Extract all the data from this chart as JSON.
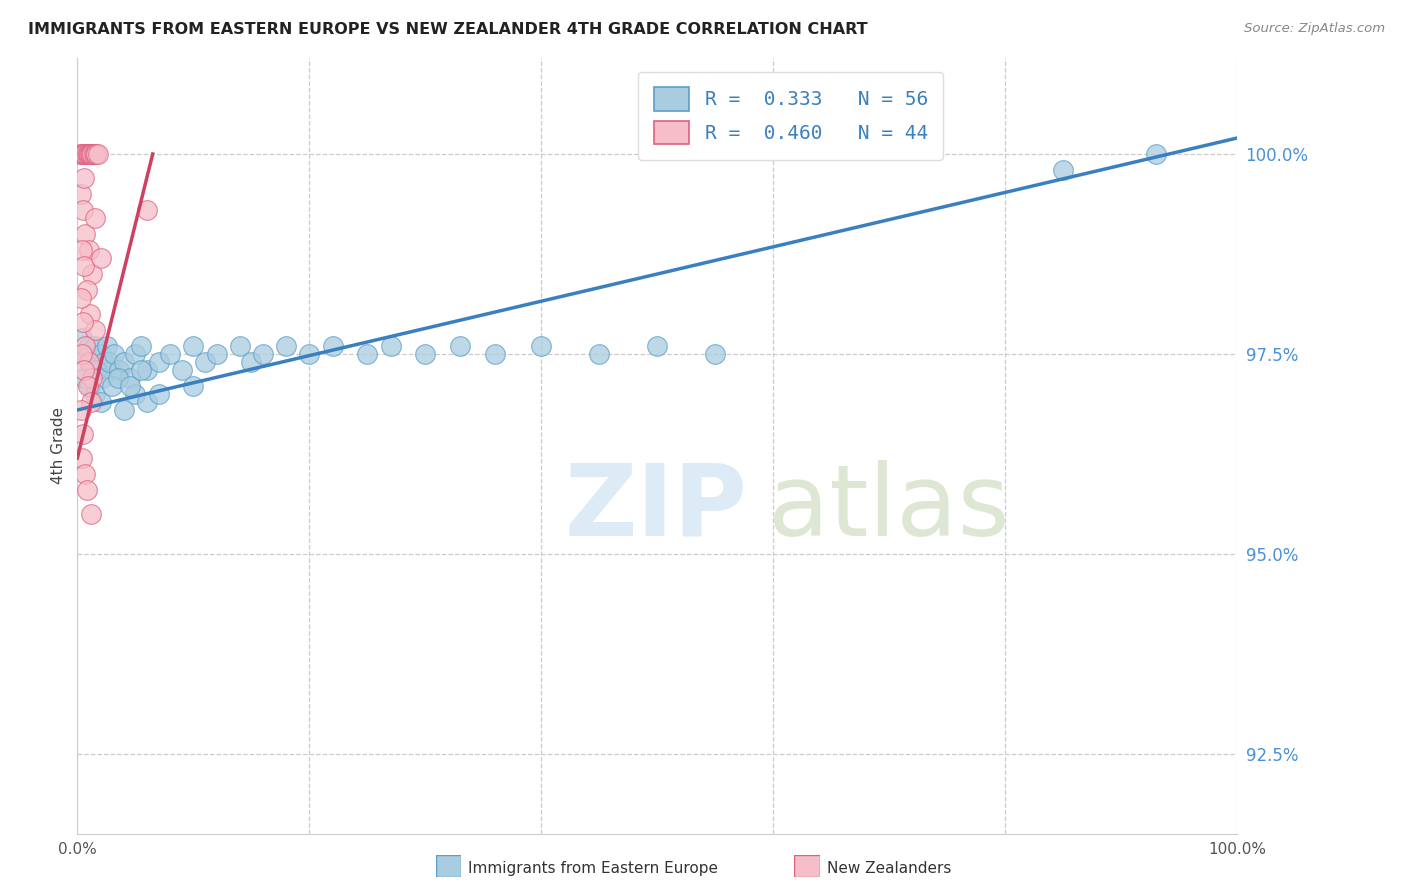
{
  "title": "IMMIGRANTS FROM EASTERN EUROPE VS NEW ZEALANDER 4TH GRADE CORRELATION CHART",
  "source": "Source: ZipAtlas.com",
  "ylabel": "4th Grade",
  "y_ticks": [
    92.5,
    95.0,
    97.5,
    100.0
  ],
  "y_tick_labels": [
    "92.5%",
    "95.0%",
    "97.5%",
    "100.0%"
  ],
  "xlim": [
    0.0,
    100.0
  ],
  "ylim": [
    91.5,
    101.2
  ],
  "legend_blue_text": "R =  0.333   N = 56",
  "legend_pink_text": "R =  0.460   N = 44",
  "blue_fill": "#a8cce0",
  "pink_fill": "#f5bec8",
  "blue_edge": "#5a9ec8",
  "pink_edge": "#e06080",
  "blue_line_color": "#3a80c0",
  "pink_line_color": "#d04060",
  "background_color": "#ffffff",
  "blue_scatter": [
    [
      0.4,
      97.7
    ],
    [
      0.7,
      97.5
    ],
    [
      1.0,
      97.6
    ],
    [
      1.3,
      97.4
    ],
    [
      1.5,
      97.6
    ],
    [
      1.8,
      97.3
    ],
    [
      2.0,
      97.5
    ],
    [
      2.3,
      97.4
    ],
    [
      2.6,
      97.6
    ],
    [
      2.9,
      97.3
    ],
    [
      0.6,
      97.2
    ],
    [
      1.1,
      97.1
    ],
    [
      1.6,
      97.3
    ],
    [
      2.1,
      97.2
    ],
    [
      2.7,
      97.4
    ],
    [
      3.2,
      97.5
    ],
    [
      3.6,
      97.3
    ],
    [
      4.0,
      97.4
    ],
    [
      4.5,
      97.2
    ],
    [
      5.0,
      97.5
    ],
    [
      5.5,
      97.6
    ],
    [
      6.0,
      97.3
    ],
    [
      7.0,
      97.4
    ],
    [
      8.0,
      97.5
    ],
    [
      9.0,
      97.3
    ],
    [
      10.0,
      97.6
    ],
    [
      11.0,
      97.4
    ],
    [
      12.0,
      97.5
    ],
    [
      14.0,
      97.6
    ],
    [
      15.0,
      97.4
    ],
    [
      16.0,
      97.5
    ],
    [
      18.0,
      97.6
    ],
    [
      20.0,
      97.5
    ],
    [
      22.0,
      97.6
    ],
    [
      25.0,
      97.5
    ],
    [
      27.0,
      97.6
    ],
    [
      30.0,
      97.5
    ],
    [
      33.0,
      97.6
    ],
    [
      36.0,
      97.5
    ],
    [
      40.0,
      97.6
    ],
    [
      45.0,
      97.5
    ],
    [
      50.0,
      97.6
    ],
    [
      55.0,
      97.5
    ],
    [
      85.0,
      99.8
    ],
    [
      93.0,
      100.0
    ],
    [
      1.5,
      97.0
    ],
    [
      2.0,
      96.9
    ],
    [
      3.0,
      97.1
    ],
    [
      4.0,
      96.8
    ],
    [
      5.0,
      97.0
    ],
    [
      6.0,
      96.9
    ],
    [
      3.5,
      97.2
    ],
    [
      4.5,
      97.1
    ],
    [
      5.5,
      97.3
    ],
    [
      7.0,
      97.0
    ],
    [
      10.0,
      97.1
    ]
  ],
  "pink_scatter": [
    [
      0.2,
      100.0
    ],
    [
      0.4,
      100.0
    ],
    [
      0.5,
      100.0
    ],
    [
      0.6,
      100.0
    ],
    [
      0.7,
      100.0
    ],
    [
      0.8,
      100.0
    ],
    [
      0.9,
      100.0
    ],
    [
      1.0,
      100.0
    ],
    [
      1.1,
      100.0
    ],
    [
      1.2,
      100.0
    ],
    [
      1.3,
      100.0
    ],
    [
      1.4,
      100.0
    ],
    [
      1.5,
      100.0
    ],
    [
      1.6,
      100.0
    ],
    [
      1.8,
      100.0
    ],
    [
      0.3,
      99.5
    ],
    [
      0.5,
      99.3
    ],
    [
      0.7,
      99.0
    ],
    [
      1.0,
      98.8
    ],
    [
      1.3,
      98.5
    ],
    [
      0.4,
      98.8
    ],
    [
      0.6,
      98.6
    ],
    [
      0.8,
      98.3
    ],
    [
      1.1,
      98.0
    ],
    [
      1.5,
      97.8
    ],
    [
      0.3,
      98.2
    ],
    [
      0.5,
      97.9
    ],
    [
      0.7,
      97.6
    ],
    [
      1.0,
      97.4
    ],
    [
      1.3,
      97.2
    ],
    [
      0.4,
      97.5
    ],
    [
      0.6,
      97.3
    ],
    [
      0.9,
      97.1
    ],
    [
      1.2,
      96.9
    ],
    [
      0.3,
      96.8
    ],
    [
      0.5,
      96.5
    ],
    [
      0.6,
      99.7
    ],
    [
      6.0,
      99.3
    ],
    [
      0.4,
      96.2
    ],
    [
      0.7,
      96.0
    ],
    [
      1.5,
      99.2
    ],
    [
      2.0,
      98.7
    ],
    [
      0.8,
      95.8
    ],
    [
      1.2,
      95.5
    ]
  ],
  "blue_line_x": [
    0.0,
    100.0
  ],
  "blue_line_y": [
    96.8,
    100.2
  ],
  "pink_line_x": [
    0.0,
    6.5
  ],
  "pink_line_y": [
    96.2,
    100.0
  ]
}
